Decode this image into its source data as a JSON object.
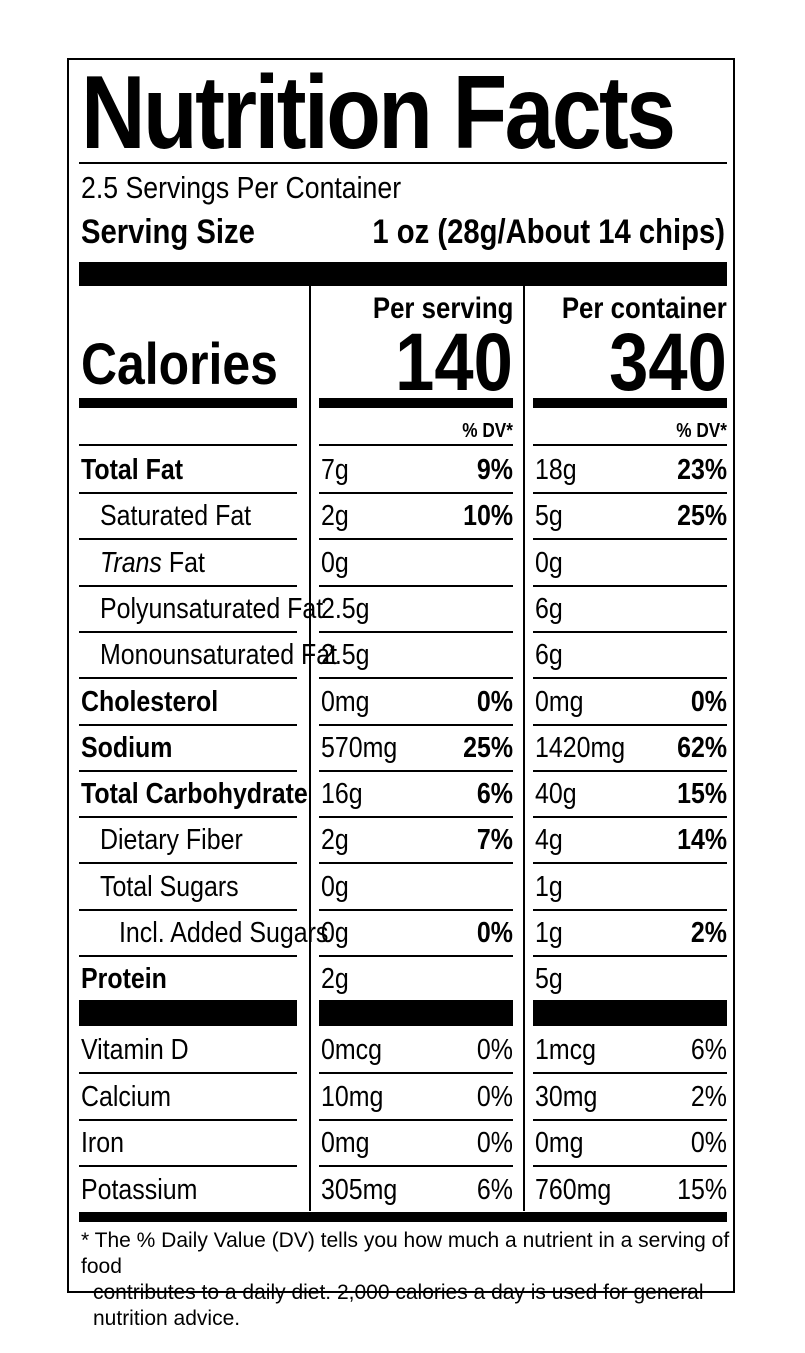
{
  "title": "Nutrition Facts",
  "servings_per_container": "2.5 Servings Per Container",
  "serving_size_label": "Serving Size",
  "serving_size_value": "1 oz (28g/About 14 chips)",
  "calories_label": "Calories",
  "per_serving_label": "Per serving",
  "per_container_label": "Per container",
  "calories_per_serving": "140",
  "calories_per_container": "340",
  "dv_header": "% DV*",
  "nutrients": [
    {
      "label": "Total Fat",
      "bold": true,
      "indent": 0,
      "italic_prefix": "",
      "serving_amt": "7g",
      "serving_pct": "9%",
      "container_amt": "18g",
      "container_pct": "23%"
    },
    {
      "label": "Saturated Fat",
      "bold": false,
      "indent": 1,
      "italic_prefix": "",
      "serving_amt": "2g",
      "serving_pct": "10%",
      "container_amt": "5g",
      "container_pct": "25%"
    },
    {
      "label": " Fat",
      "bold": false,
      "indent": 1,
      "italic_prefix": "Trans",
      "serving_amt": "0g",
      "serving_pct": "",
      "container_amt": "0g",
      "container_pct": ""
    },
    {
      "label": "Polyunsaturated Fat",
      "bold": false,
      "indent": 1,
      "italic_prefix": "",
      "serving_amt": "2.5g",
      "serving_pct": "",
      "container_amt": "6g",
      "container_pct": ""
    },
    {
      "label": "Monounsaturated Fat",
      "bold": false,
      "indent": 1,
      "italic_prefix": "",
      "serving_amt": "2.5g",
      "serving_pct": "",
      "container_amt": "6g",
      "container_pct": ""
    },
    {
      "label": "Cholesterol",
      "bold": true,
      "indent": 0,
      "italic_prefix": "",
      "serving_amt": "0mg",
      "serving_pct": "0%",
      "container_amt": "0mg",
      "container_pct": "0%"
    },
    {
      "label": "Sodium",
      "bold": true,
      "indent": 0,
      "italic_prefix": "",
      "serving_amt": "570mg",
      "serving_pct": "25%",
      "container_amt": "1420mg",
      "container_pct": "62%"
    },
    {
      "label": "Total Carbohydrate",
      "bold": true,
      "indent": 0,
      "italic_prefix": "",
      "serving_amt": "16g",
      "serving_pct": "6%",
      "container_amt": "40g",
      "container_pct": "15%"
    },
    {
      "label": "Dietary Fiber",
      "bold": false,
      "indent": 1,
      "italic_prefix": "",
      "serving_amt": "2g",
      "serving_pct": "7%",
      "container_amt": "4g",
      "container_pct": "14%"
    },
    {
      "label": "Total Sugars",
      "bold": false,
      "indent": 1,
      "italic_prefix": "",
      "serving_amt": "0g",
      "serving_pct": "",
      "container_amt": "1g",
      "container_pct": ""
    },
    {
      "label": "Incl. Added Sugars",
      "bold": false,
      "indent": 2,
      "italic_prefix": "",
      "serving_amt": "0g",
      "serving_pct": "0%",
      "container_amt": "1g",
      "container_pct": "2%"
    },
    {
      "label": "Protein",
      "bold": true,
      "indent": 0,
      "italic_prefix": "",
      "serving_amt": "2g",
      "serving_pct": "",
      "container_amt": "5g",
      "container_pct": ""
    }
  ],
  "vitamins": [
    {
      "label": "Vitamin D",
      "serving_amt": "0mcg",
      "serving_pct": "0%",
      "container_amt": "1mcg",
      "container_pct": "6%"
    },
    {
      "label": "Calcium",
      "serving_amt": "10mg",
      "serving_pct": "0%",
      "container_amt": "30mg",
      "container_pct": "2%"
    },
    {
      "label": "Iron",
      "serving_amt": "0mg",
      "serving_pct": "0%",
      "container_amt": "0mg",
      "container_pct": "0%"
    },
    {
      "label": "Potassium",
      "serving_amt": "305mg",
      "serving_pct": "6%",
      "container_amt": "760mg",
      "container_pct": "15%"
    }
  ],
  "footnote_line1": "* The % Daily Value (DV) tells you how much a nutrient in a serving of food",
  "footnote_line2": "contributes to a daily diet. 2,000 calories a day is used for general nutrition advice."
}
